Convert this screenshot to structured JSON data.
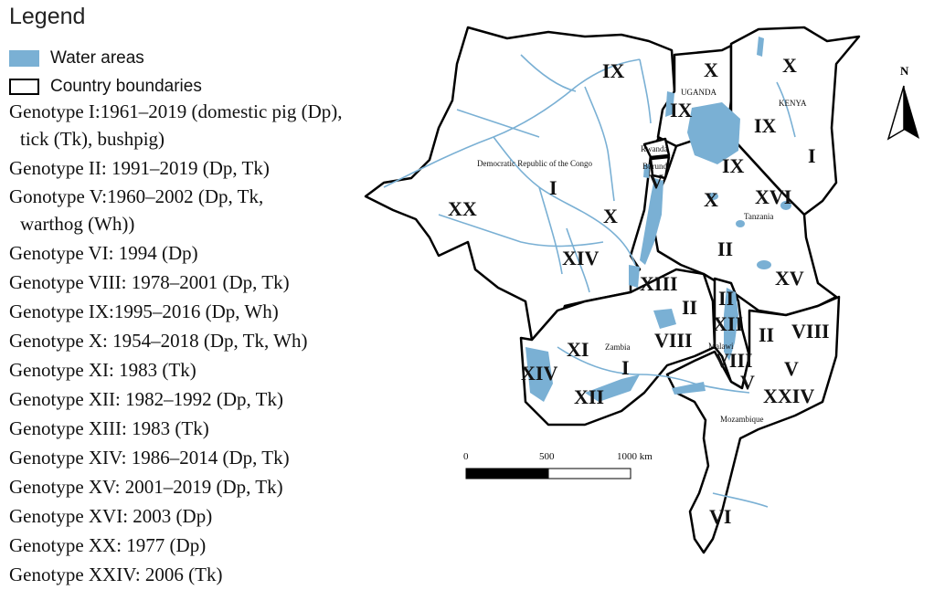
{
  "legend": {
    "title": "Legend",
    "water_label": "Water areas",
    "border_label": "Country boundaries",
    "water_color": "#7ab0d4",
    "genotypes": [
      "Genotype I:1961–2019 (domestic pig (Dp),",
      "tick (Tk), bushpig)",
      "Genotype II: 1991–2019 (Dp, Tk)",
      "Gonotype V:1960–2002 (Dp, Tk,",
      "warthog (Wh))",
      "Genotype VI: 1994 (Dp)",
      "Genotype VIII: 1978–2001 (Dp, Tk)",
      "Genotype IX:1995–2016 (Dp, Wh)",
      "Genotype X: 1954–2018 (Dp, Tk, Wh)",
      "Genotype XI: 1983 (Tk)",
      "Genotype XII: 1982–1992 (Dp, Tk)",
      "Genotype XIII: 1983 (Tk)",
      "Genotype XIV: 1986–2014 (Dp, Tk)",
      "Genotype XV: 2001–2019 (Dp, Tk)",
      "Genotype XVI: 2003 (Dp)",
      "Genotype XX: 1977 (Dp)",
      "Genotype XXIV: 2006 (Tk)"
    ]
  },
  "map": {
    "countries": {
      "drc": "Democratic Republic of the Congo",
      "uganda": "UGANDA",
      "kenya": "KENYA",
      "rwanda": "Rwanda",
      "burundi": "Burundi",
      "tanzania": "Tanzania",
      "zambia": "Zambia",
      "malawi": "Malawi",
      "mozambique": "Mozambique"
    },
    "genotype_labels": {
      "drc_ix": "IX",
      "drc_i": "I",
      "drc_xx": "XX",
      "drc_x": "X",
      "drc_xiv": "XIV",
      "uganda_x": "X",
      "uganda_ix": "IX",
      "kenya_x": "X",
      "kenya_ix": "IX",
      "kenya_i": "I",
      "burundi_v": "V",
      "tz_ix": "IX",
      "tz_x": "X",
      "tz_xvi": "XVI",
      "tz_ii": "II",
      "tz_xv": "XV",
      "tz_xiii": "XIII",
      "zambia_xi": "XI",
      "zambia_i": "I",
      "zambia_xiv": "XIV",
      "zambia_xii": "XII",
      "zambia_viii": "VIII",
      "zambia_ii": "II",
      "malawi_ii": "II",
      "malawi_xii": "XII",
      "malawi_viii": "VIII",
      "malawi_v": "V",
      "moz_ii": "II",
      "moz_viii": "VIII",
      "moz_v": "V",
      "moz_xxiv": "XXIV",
      "moz_vi": "VI"
    },
    "scale": {
      "t0": "0",
      "t1": "500",
      "t2": "1000 km"
    },
    "north": "N"
  }
}
